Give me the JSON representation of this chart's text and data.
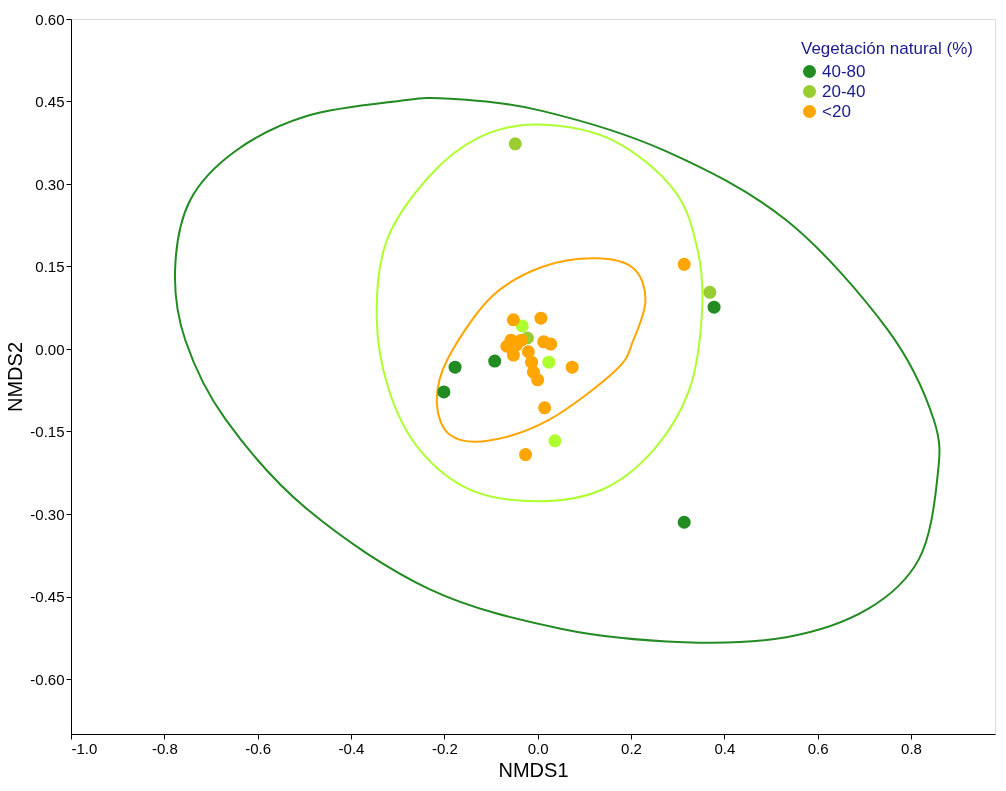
{
  "chart_data": {
    "type": "scatter",
    "xlabel": "NMDS1",
    "ylabel": "NMDS2",
    "legend_title": "Vegetación natural (%)",
    "legend": "top right",
    "grid": false,
    "marker": "circle",
    "xlim": [
      -1.0,
      0.98
    ],
    "ylim": [
      -0.7,
      0.6
    ],
    "xticks": [
      {
        "value": -1.0,
        "label": "-1.0"
      },
      {
        "value": -0.8,
        "label": "-0.8"
      },
      {
        "value": -0.6,
        "label": "-0.6"
      },
      {
        "value": -0.4,
        "label": "-0.4"
      },
      {
        "value": -0.2,
        "label": "-0.2"
      },
      {
        "value": 0,
        "label": "0.0"
      },
      {
        "value": 0.2,
        "label": "0.2"
      },
      {
        "value": 0.4,
        "label": "0.4"
      },
      {
        "value": 0.6,
        "label": "0.6"
      },
      {
        "value": 0.8,
        "label": "0.8"
      }
    ],
    "yticks": [
      {
        "value": 0.6,
        "label": "0.60"
      },
      {
        "value": 0.45,
        "label": "0.45"
      },
      {
        "value": 0.3,
        "label": "0.30"
      },
      {
        "value": 0.15,
        "label": "0.15"
      },
      {
        "value": 0,
        "label": "0.00"
      },
      {
        "value": -0.15,
        "label": "-0.15"
      },
      {
        "value": -0.3,
        "label": "-0.30"
      },
      {
        "value": -0.45,
        "label": "-0.45"
      },
      {
        "value": -0.6,
        "label": "-0.60"
      }
    ],
    "series": [
      {
        "name": "40-80",
        "color": "#228b22",
        "x": [
          -0.177,
          -0.201,
          -0.092,
          0.378,
          0.314
        ],
        "values": [
          -0.033,
          -0.078,
          -0.022,
          0.076,
          -0.315
        ]
      },
      {
        "name": "20-40",
        "color": "#9acd32",
        "x": [
          -0.048,
          0.369,
          -0.022
        ],
        "values": [
          0.373,
          0.103,
          0.02
        ]
      },
      {
        "color": "#adff2f",
        "x": [
          -0.033,
          0.024,
          0.037
        ],
        "values": [
          0.042,
          -0.024,
          -0.167
        ]
      },
      {
        "name": "<20",
        "color": "#ffa500",
        "x": [
          0.314,
          -0.052,
          0.007,
          0.074,
          0.015,
          -0.026,
          -0.057,
          -0.066,
          -0.046,
          -0.035,
          0.013,
          0.028,
          -0.052,
          -0.02,
          -0.013,
          -0.009,
          0.0
        ],
        "values": [
          0.154,
          0.053,
          0.056,
          -0.033,
          -0.107,
          -0.192,
          0.016,
          0.005,
          0.007,
          0.016,
          0.013,
          0.009,
          -0.011,
          -0.005,
          -0.024,
          -0.042,
          -0.056
        ]
      }
    ]
  }
}
